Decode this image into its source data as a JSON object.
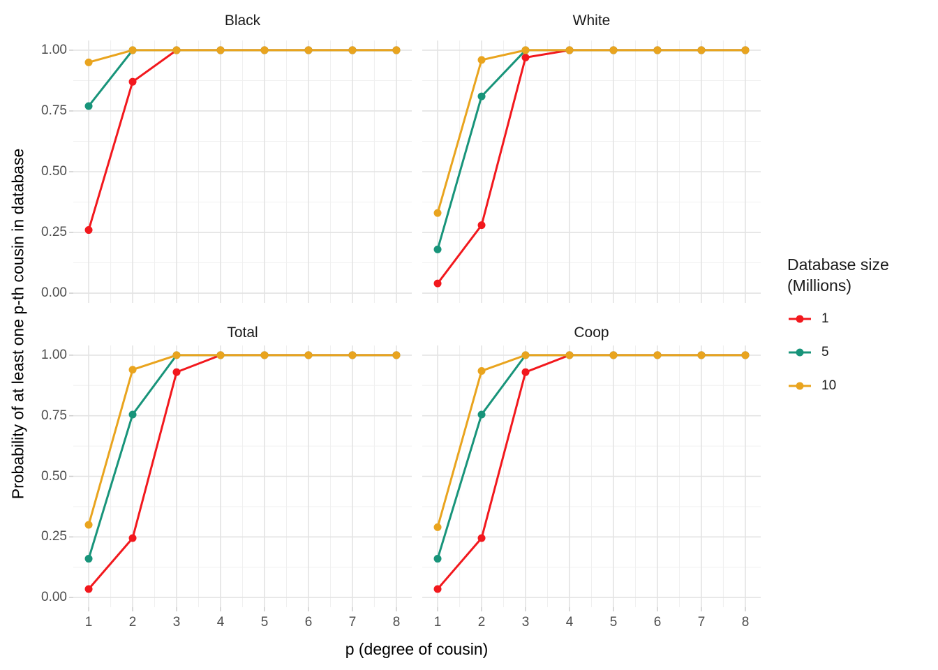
{
  "figure": {
    "background": "#ffffff"
  },
  "axis": {
    "x_title": "p (degree of cousin)",
    "y_title": "Probability of at least one p-th cousin in database",
    "x_tick_labels": [
      "1",
      "2",
      "3",
      "4",
      "5",
      "6",
      "7",
      "8"
    ],
    "y_tick_labels": [
      "1.00",
      "0.75",
      "0.50",
      "0.25",
      "0.00"
    ]
  },
  "legend": {
    "title": "Database size\n(Millions)",
    "entries": [
      {
        "label": "1",
        "color": "#F2181D"
      },
      {
        "label": "5",
        "color": "#18947A"
      },
      {
        "label": "10",
        "color": "#E9A41E"
      }
    ]
  },
  "colors": {
    "series_red": "#F2181D",
    "series_teal": "#18947A",
    "series_orange": "#E9A41E",
    "grid_major": "#E3E3E3",
    "grid_minor": "#F0F0F0",
    "tick_mark": "#CCCCCC",
    "tick_text": "#4D4D4D",
    "title_text": "#1A1A1A"
  },
  "chart_data": {
    "type": "line",
    "x": [
      1,
      2,
      3,
      4,
      5,
      6,
      7,
      8
    ],
    "xlabel": "p (degree of cousin)",
    "ylabel": "Probability of at least one p-th cousin in database",
    "xlim": [
      0.65,
      8.35
    ],
    "ylim": [
      -0.04,
      1.04
    ],
    "x_ticks": [
      1,
      2,
      3,
      4,
      5,
      6,
      7,
      8
    ],
    "y_ticks": [
      0,
      0.25,
      0.5,
      0.75,
      1.0
    ],
    "y_minor": [
      0.125,
      0.375,
      0.625,
      0.875
    ],
    "x_minor": [
      1.5,
      2.5,
      3.5,
      4.5,
      5.5,
      6.5,
      7.5
    ],
    "grid": "on",
    "legend_position": "right",
    "legend_title": "Database size (Millions)",
    "facets": [
      {
        "title": "Black",
        "series": [
          {
            "name": "1",
            "color": "#F2181D",
            "values": [
              0.26,
              0.87,
              1,
              1,
              1,
              1,
              1,
              1
            ]
          },
          {
            "name": "5",
            "color": "#18947A",
            "values": [
              0.77,
              1.0,
              1,
              1,
              1,
              1,
              1,
              1
            ]
          },
          {
            "name": "10",
            "color": "#E9A41E",
            "values": [
              0.95,
              1.0,
              1,
              1,
              1,
              1,
              1,
              1
            ]
          }
        ]
      },
      {
        "title": "White",
        "series": [
          {
            "name": "1",
            "color": "#F2181D",
            "values": [
              0.04,
              0.28,
              0.97,
              1,
              1,
              1,
              1,
              1
            ]
          },
          {
            "name": "5",
            "color": "#18947A",
            "values": [
              0.18,
              0.81,
              1.0,
              1,
              1,
              1,
              1,
              1
            ]
          },
          {
            "name": "10",
            "color": "#E9A41E",
            "values": [
              0.33,
              0.96,
              1.0,
              1,
              1,
              1,
              1,
              1
            ]
          }
        ]
      },
      {
        "title": "Total",
        "series": [
          {
            "name": "1",
            "color": "#F2181D",
            "values": [
              0.035,
              0.245,
              0.93,
              1,
              1,
              1,
              1,
              1
            ]
          },
          {
            "name": "5",
            "color": "#18947A",
            "values": [
              0.16,
              0.755,
              1.0,
              1,
              1,
              1,
              1,
              1
            ]
          },
          {
            "name": "10",
            "color": "#E9A41E",
            "values": [
              0.3,
              0.94,
              1.0,
              1,
              1,
              1,
              1,
              1
            ]
          }
        ]
      },
      {
        "title": "Coop",
        "series": [
          {
            "name": "1",
            "color": "#F2181D",
            "values": [
              0.035,
              0.245,
              0.93,
              1,
              1,
              1,
              1,
              1
            ]
          },
          {
            "name": "5",
            "color": "#18947A",
            "values": [
              0.16,
              0.755,
              1.0,
              1,
              1,
              1,
              1,
              1
            ]
          },
          {
            "name": "10",
            "color": "#E9A41E",
            "values": [
              0.29,
              0.935,
              1.0,
              1,
              1,
              1,
              1,
              1
            ]
          }
        ]
      }
    ]
  }
}
